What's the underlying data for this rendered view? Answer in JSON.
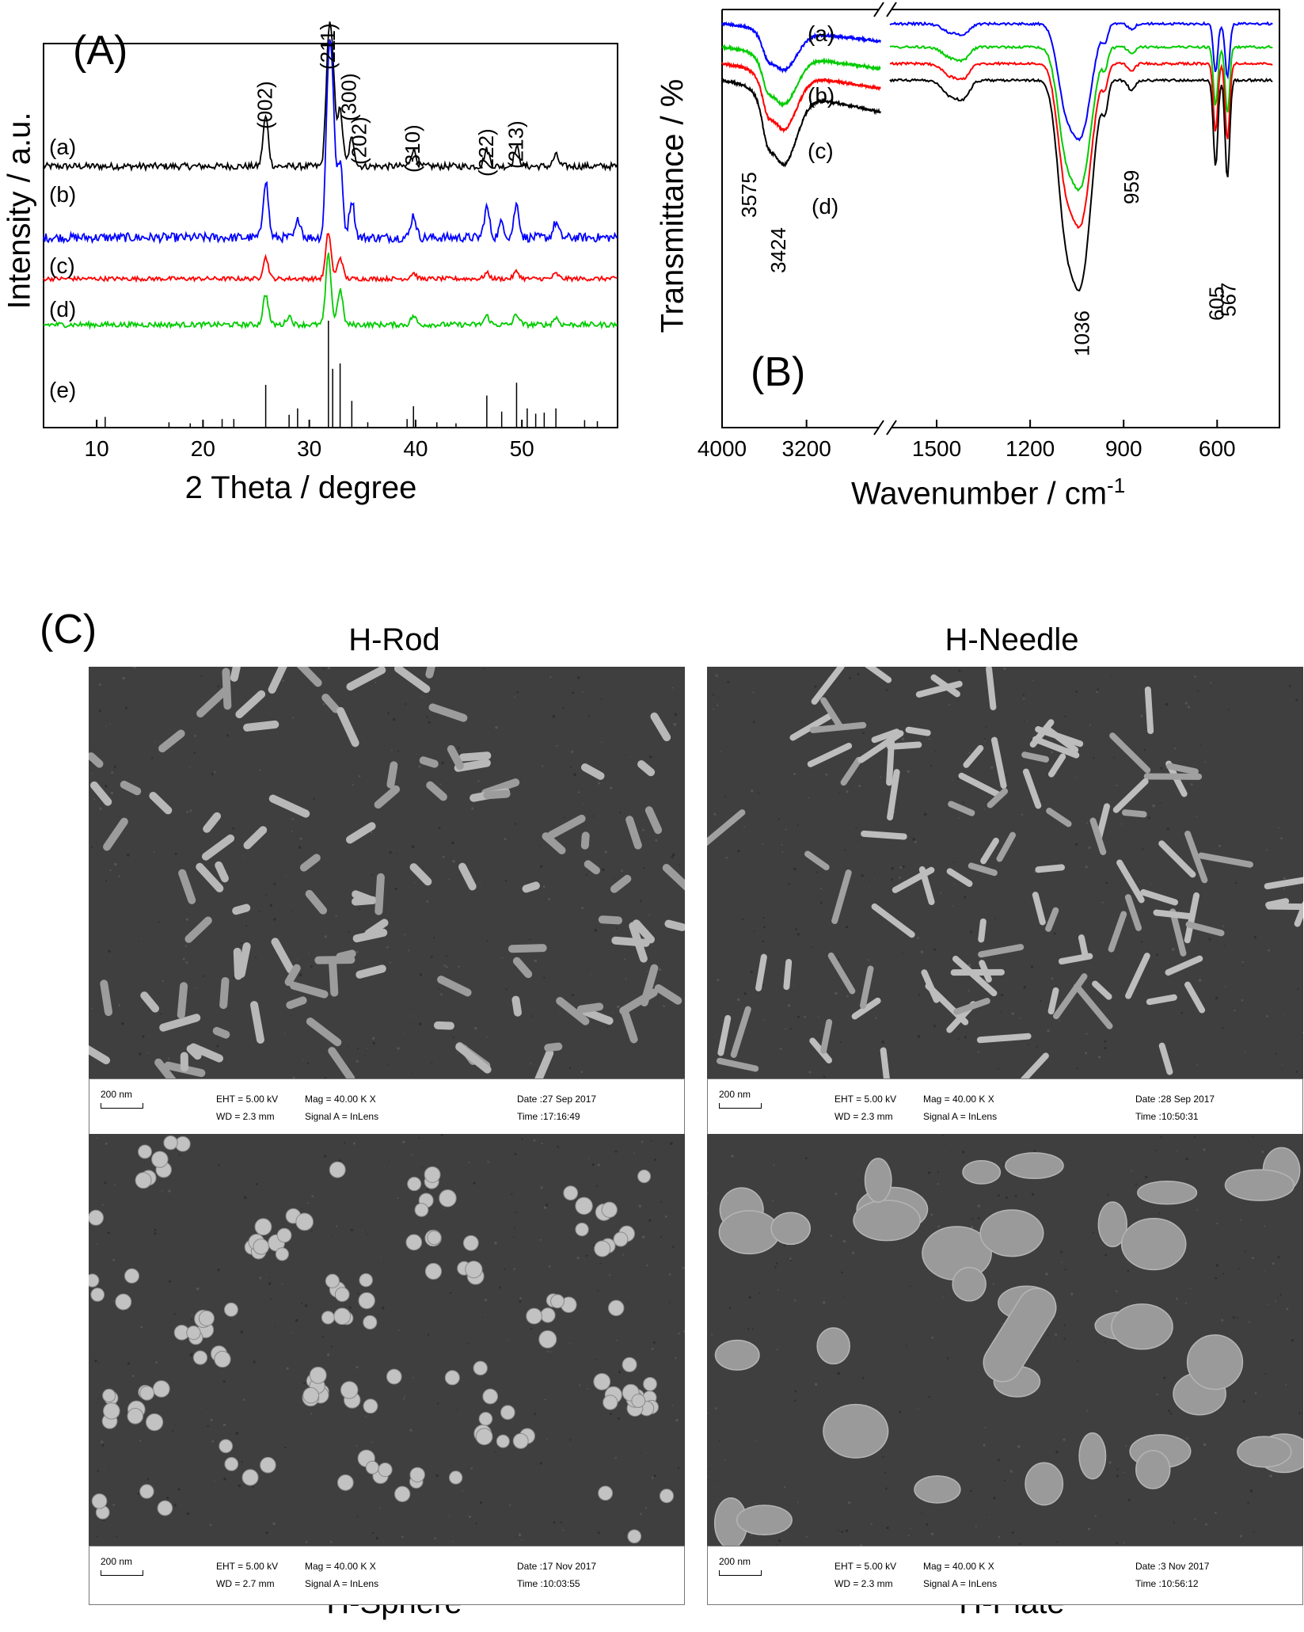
{
  "panel_a": {
    "label": "(A)",
    "ylabel": "Intensity / a.u.",
    "xlabel": "2 Theta / degree",
    "trace_labels": [
      "(a)",
      "(b)",
      "(c)",
      "(d)",
      "(e)"
    ],
    "peak_labels": [
      "(002)",
      "(211)",
      "(300)",
      "(202)",
      "(310)",
      "(222)",
      "(213)"
    ]
  },
  "panel_b": {
    "label": "(B)",
    "ylabel": "Transmittance / %",
    "xlabel": "Wavenumber / cm",
    "xlabel_sup": "-1",
    "trace_labels": [
      "(a)",
      "(b)",
      "(c)",
      "(d)"
    ],
    "peak_labels": [
      "3575",
      "3424",
      "959",
      "1036",
      "605",
      "567"
    ]
  },
  "panel_c": {
    "label": "(C)",
    "images": [
      {
        "title": "H-Rod",
        "scale": "200 nm",
        "eht": "EHT =  5.00 kV",
        "wd": "WD =  2.3 mm",
        "mag": "Mag =  40.00 K X",
        "signal": "Signal A = InLens",
        "date": "Date :27 Sep 2017",
        "time": "Time :17:16:49"
      },
      {
        "title": "H-Needle",
        "scale": "200 nm",
        "eht": "EHT =  5.00 kV",
        "wd": "WD =  2.3 mm",
        "mag": "Mag =  40.00 K X",
        "signal": "Signal A = InLens",
        "date": "Date :28 Sep 2017",
        "time": "Time :10:50:31"
      },
      {
        "title": "H-Sphere",
        "scale": "200 nm",
        "eht": "EHT =  5.00 kV",
        "wd": "WD =  2.7 mm",
        "mag": "Mag =  40.00 K X",
        "signal": "Signal A = InLens",
        "date": "Date :17 Nov 2017",
        "time": "Time :10:03:55"
      },
      {
        "title": "H-Plate",
        "scale": "200 nm",
        "eht": "EHT =  5.00 kV",
        "wd": "WD =  2.3 mm",
        "mag": "Mag =  40.00 K X",
        "signal": "Signal A = InLens",
        "date": "Date :3 Nov 2017",
        "time": "Time :10:56:12"
      }
    ]
  },
  "chart_data": [
    {
      "type": "line",
      "xlabel": "2 Theta / degree",
      "ylabel": "Intensity / a.u.",
      "xlim": [
        5,
        59
      ],
      "xticks": [
        10,
        20,
        30,
        40,
        50
      ],
      "colors": {
        "(a)": "#000000",
        "(b)": "#0000ff",
        "(c)": "#ff0000",
        "(d)": "#00cc00",
        "(e)": "#000000"
      },
      "peaks": [
        {
          "label": "(002)",
          "x": 25.9
        },
        {
          "label": "(211)",
          "x": 31.8
        },
        {
          "label": "(300)",
          "x": 32.9
        },
        {
          "label": "(202)",
          "x": 34.0
        },
        {
          "label": "(310)",
          "x": 39.8
        },
        {
          "label": "(222)",
          "x": 46.7
        },
        {
          "label": "(213)",
          "x": 49.5
        }
      ],
      "series": [
        {
          "name": "(a)",
          "baseline": 0.72,
          "peaks": [
            [
              25.9,
              0.45
            ],
            [
              31.8,
              1.0
            ],
            [
              32.2,
              0.75
            ],
            [
              32.9,
              0.5
            ],
            [
              34.0,
              0.25
            ],
            [
              39.8,
              0.15
            ],
            [
              46.7,
              0.15
            ],
            [
              49.5,
              0.17
            ],
            [
              53.2,
              0.1
            ]
          ]
        },
        {
          "name": "(b)",
          "baseline": 0.55,
          "peaks": [
            [
              25.9,
              0.38
            ],
            [
              29.0,
              0.12
            ],
            [
              31.8,
              1.0
            ],
            [
              32.2,
              0.8
            ],
            [
              32.9,
              0.5
            ],
            [
              34.0,
              0.25
            ],
            [
              39.8,
              0.15
            ],
            [
              46.7,
              0.2
            ],
            [
              48.1,
              0.1
            ],
            [
              49.5,
              0.22
            ],
            [
              53.2,
              0.1
            ]
          ]
        },
        {
          "name": "(c)",
          "baseline": 0.38,
          "peaks": [
            [
              25.9,
              0.3
            ],
            [
              31.8,
              0.65
            ],
            [
              32.9,
              0.3
            ],
            [
              39.8,
              0.08
            ],
            [
              46.7,
              0.08
            ],
            [
              49.5,
              0.1
            ],
            [
              53.2,
              0.07
            ]
          ]
        },
        {
          "name": "(d)",
          "baseline": 0.22,
          "peaks": [
            [
              25.9,
              0.35
            ],
            [
              28.1,
              0.1
            ],
            [
              31.8,
              0.8
            ],
            [
              32.9,
              0.4
            ],
            [
              39.8,
              0.1
            ],
            [
              46.7,
              0.1
            ],
            [
              49.5,
              0.12
            ],
            [
              53.2,
              0.08
            ]
          ]
        },
        {
          "name": "(e)",
          "sticks": [
            [
              10.8,
              0.1
            ],
            [
              16.8,
              0.05
            ],
            [
              18.8,
              0.04
            ],
            [
              21.8,
              0.08
            ],
            [
              22.9,
              0.08
            ],
            [
              25.9,
              0.4
            ],
            [
              28.1,
              0.12
            ],
            [
              28.9,
              0.18
            ],
            [
              31.8,
              1.0
            ],
            [
              32.2,
              0.55
            ],
            [
              32.9,
              0.6
            ],
            [
              34.0,
              0.25
            ],
            [
              35.5,
              0.05
            ],
            [
              39.2,
              0.08
            ],
            [
              39.8,
              0.2
            ],
            [
              42.0,
              0.05
            ],
            [
              43.8,
              0.04
            ],
            [
              46.7,
              0.3
            ],
            [
              48.1,
              0.15
            ],
            [
              49.5,
              0.42
            ],
            [
              50.5,
              0.18
            ],
            [
              51.3,
              0.13
            ],
            [
              52.1,
              0.14
            ],
            [
              53.2,
              0.18
            ],
            [
              55.9,
              0.07
            ],
            [
              57.1,
              0.06
            ]
          ]
        }
      ]
    },
    {
      "type": "line",
      "xlabel": "Wavenumber / cm-1",
      "ylabel": "Transmittance / %",
      "x_segments": [
        [
          4000,
          2500
        ],
        [
          1650,
          400
        ]
      ],
      "xticks": [
        4000,
        3200,
        1500,
        1200,
        900,
        600
      ],
      "colors": {
        "(a)": "#0000ff",
        "(b)": "#00cc00",
        "(c)": "#ff0000",
        "(d)": "#000000"
      },
      "peaks": [
        {
          "label": "3575",
          "x": 3575
        },
        {
          "label": "3424",
          "x": 3424
        },
        {
          "label": "1036",
          "x": 1036
        },
        {
          "label": "959",
          "x": 959
        },
        {
          "label": "605",
          "x": 605
        },
        {
          "label": "567",
          "x": 567
        }
      ],
      "series": [
        {
          "name": "(a)",
          "offset": 0.0,
          "scale": 0.55
        },
        {
          "name": "(b)",
          "offset": 0.07,
          "scale": 0.68
        },
        {
          "name": "(c)",
          "offset": 0.12,
          "scale": 0.78
        },
        {
          "name": "(d)",
          "offset": 0.17,
          "scale": 1.0
        }
      ]
    }
  ]
}
